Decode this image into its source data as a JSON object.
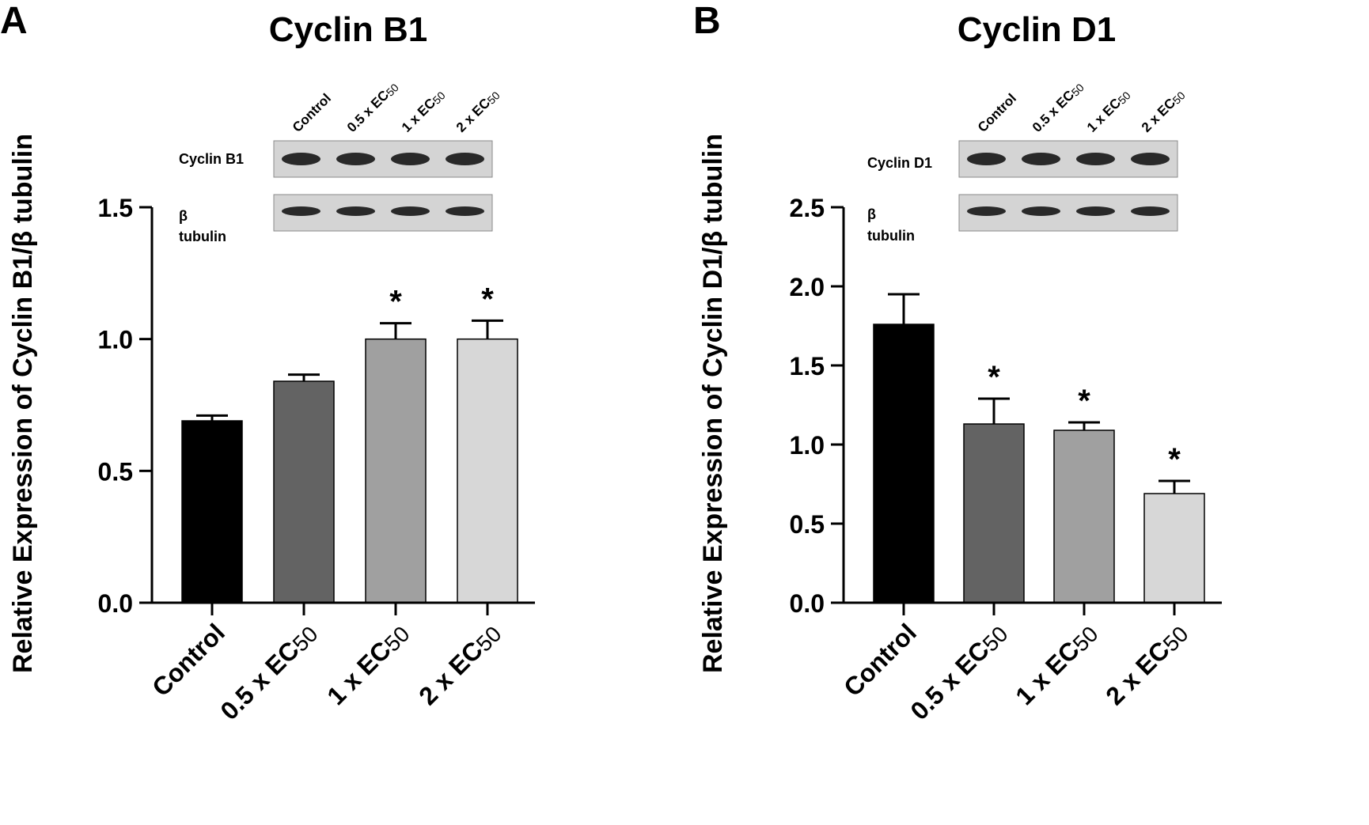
{
  "chart_data": [
    {
      "type": "bar",
      "panel_label": "A",
      "title": "Cyclin B1",
      "ylabel": "Relative Expression of Cyclin B1/β tubulin",
      "ylim": [
        0,
        1.5
      ],
      "yticks": [
        "0.0",
        "0.5",
        "1.0",
        "1.5"
      ],
      "ytick_values": [
        0,
        0.5,
        1.0,
        1.5
      ],
      "categories": [
        {
          "main": "Control",
          "sub": ""
        },
        {
          "main": "0.5 x EC",
          "sub": "50"
        },
        {
          "main": "1 x EC",
          "sub": "50"
        },
        {
          "main": "2 x EC",
          "sub": "50"
        }
      ],
      "values": [
        0.69,
        0.84,
        1.0,
        1.0
      ],
      "errors": [
        0.02,
        0.025,
        0.06,
        0.07
      ],
      "significance": [
        "",
        "",
        "*",
        "*"
      ],
      "bar_colors": [
        "#000000",
        "#636363",
        "#a0a0a0",
        "#d7d7d7"
      ],
      "blot": {
        "lane_labels": [
          {
            "main": "Control",
            "sub": ""
          },
          {
            "main": "0.5 x EC",
            "sub": "50"
          },
          {
            "main": "1 x EC",
            "sub": "50"
          },
          {
            "main": "2 x EC",
            "sub": "50"
          }
        ],
        "rows": [
          {
            "label": "Cyclin B1",
            "label_lines": [
              "Cyclin B1"
            ]
          },
          {
            "label": "β tubulin",
            "label_lines": [
              "β",
              "tubulin"
            ]
          }
        ]
      }
    },
    {
      "type": "bar",
      "panel_label": "B",
      "title": "Cyclin D1",
      "ylabel": "Relative Expression of Cyclin D1/β tubulin",
      "ylim": [
        0,
        2.5
      ],
      "yticks": [
        "0.0",
        "0.5",
        "1.0",
        "1.5",
        "2.0",
        "2.5"
      ],
      "ytick_values": [
        0,
        0.5,
        1.0,
        1.5,
        2.0,
        2.5
      ],
      "categories": [
        {
          "main": "Control",
          "sub": ""
        },
        {
          "main": "0.5 x EC",
          "sub": "50"
        },
        {
          "main": "1 x EC",
          "sub": "50"
        },
        {
          "main": "2 x EC",
          "sub": "50"
        }
      ],
      "values": [
        1.76,
        1.13,
        1.09,
        0.69
      ],
      "errors": [
        0.19,
        0.16,
        0.05,
        0.08
      ],
      "significance": [
        "",
        "*",
        "*",
        "*"
      ],
      "bar_colors": [
        "#000000",
        "#636363",
        "#a0a0a0",
        "#d7d7d7"
      ],
      "blot": {
        "lane_labels": [
          {
            "main": "Control",
            "sub": ""
          },
          {
            "main": "0.5 x EC",
            "sub": "50"
          },
          {
            "main": "1 x EC",
            "sub": "50"
          },
          {
            "main": "2 x EC",
            "sub": "50"
          }
        ],
        "rows": [
          {
            "label": "Cyclin D1",
            "label_lines": [
              "Cyclin D1"
            ]
          },
          {
            "label": "β tubulin",
            "label_lines": [
              "β",
              "tubulin"
            ]
          }
        ]
      }
    }
  ]
}
